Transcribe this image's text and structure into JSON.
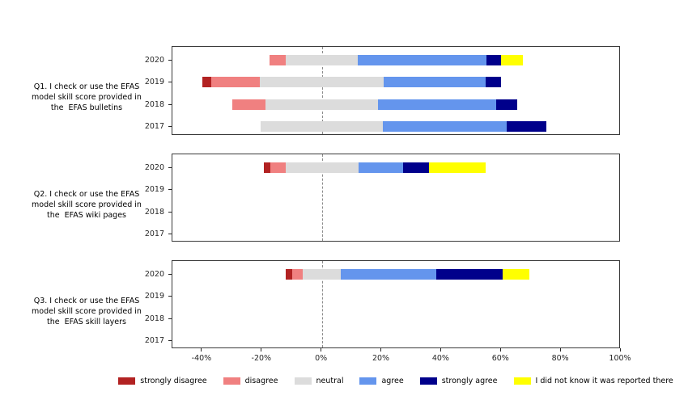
{
  "chart_data": {
    "type": "bar",
    "variant": "horizontal-diverging-stacked-likert",
    "unit": "percent",
    "alignment": "neutral category centered on 0%",
    "xlim": [
      -50,
      100
    ],
    "x_ticks": [
      {
        "value": -40,
        "label": "-40%"
      },
      {
        "value": -20,
        "label": "-20%"
      },
      {
        "value": 0,
        "label": "0%"
      },
      {
        "value": 20,
        "label": "20%"
      },
      {
        "value": 40,
        "label": "40%"
      },
      {
        "value": 60,
        "label": "60%"
      },
      {
        "value": 80,
        "label": "80%"
      },
      {
        "value": 100,
        "label": "100%"
      }
    ],
    "zero_line": {
      "style": "dashed",
      "color": "#8c8c8c",
      "value": 0
    },
    "year_rows": [
      "2020",
      "2019",
      "2018",
      "2017"
    ],
    "legend_position": "bottom",
    "legend": [
      {
        "key": "strongly_disagree",
        "label": "strongly disagree",
        "color": "#b22222"
      },
      {
        "key": "disagree",
        "label": "disagree",
        "color": "#f08080"
      },
      {
        "key": "neutral",
        "label": "neutral",
        "color": "#dcdcdc"
      },
      {
        "key": "agree",
        "label": "agree",
        "color": "#6495ed"
      },
      {
        "key": "strongly_agree",
        "label": "strongly agree",
        "color": "#00008b"
      },
      {
        "key": "did_not_know",
        "label": "I did not know it was reported there",
        "color": "#ffff00"
      }
    ],
    "panels": [
      {
        "id": "q1",
        "question_lines": [
          "Q1. I check or use the EFAS",
          "model skill score provided in",
          "the  EFAS bulletins"
        ],
        "series": {
          "strongly_disagree": [
            0,
            2.8,
            0,
            0
          ],
          "disagree": [
            5.5,
            16.3,
            11.1,
            0
          ],
          "neutral": [
            24.1,
            41.6,
            37.6,
            40.8
          ],
          "agree": [
            42.9,
            33.9,
            39.4,
            41.4
          ],
          "strongly_agree": [
            5.0,
            5.3,
            7.1,
            13.2
          ],
          "did_not_know": [
            7.3,
            0,
            0,
            0
          ]
        }
      },
      {
        "id": "q2",
        "question_lines": [
          "Q2. I check or use the EFAS",
          "model skill score provided in",
          "the  EFAS wiki pages"
        ],
        "series": {
          "strongly_disagree": [
            2.1,
            0,
            0,
            0
          ],
          "disagree": [
            5.2,
            0,
            0,
            0
          ],
          "neutral": [
            24.3,
            0,
            0,
            0
          ],
          "agree": [
            14.9,
            0,
            0,
            0
          ],
          "strongly_agree": [
            8.9,
            0,
            0,
            0
          ],
          "did_not_know": [
            18.8,
            0,
            0,
            0
          ]
        }
      },
      {
        "id": "q3",
        "question_lines": [
          "Q3. I check or use the EFAS",
          "model skill score provided in",
          "the  EFAS skill layers"
        ],
        "series": {
          "strongly_disagree": [
            2.2,
            0,
            0,
            0
          ],
          "disagree": [
            3.5,
            0,
            0,
            0
          ],
          "neutral": [
            12.8,
            0,
            0,
            0
          ],
          "agree": [
            31.8,
            0,
            0,
            0
          ],
          "strongly_agree": [
            22.2,
            0,
            0,
            0
          ],
          "did_not_know": [
            9.1,
            0,
            0,
            0
          ]
        }
      }
    ]
  }
}
